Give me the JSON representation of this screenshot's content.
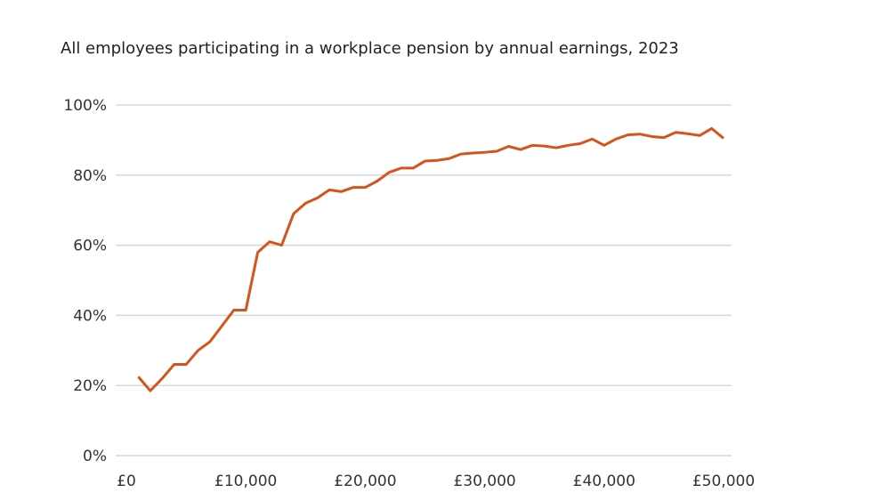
{
  "chart_data": {
    "type": "line",
    "title": "All employees participating in a workplace pension by annual earnings, 2023",
    "x": [
      1000,
      2000,
      3000,
      4000,
      5000,
      6000,
      7000,
      8000,
      9000,
      10000,
      11000,
      12000,
      13000,
      14000,
      15000,
      16000,
      17000,
      18000,
      19000,
      20000,
      21000,
      22000,
      23000,
      24000,
      25000,
      26000,
      27000,
      28000,
      29000,
      30000,
      31000,
      32000,
      33000,
      34000,
      35000,
      36000,
      37000,
      38000,
      39000,
      40000,
      41000,
      42000,
      43000,
      44000,
      45000,
      46000,
      47000,
      48000,
      49000,
      50000
    ],
    "series": [
      {
        "name": "All employees",
        "color": "#d4541c",
        "values": [
          22.5,
          18.5,
          22,
          26,
          26,
          30,
          32.5,
          37,
          41.5,
          41.5,
          58,
          61,
          60,
          69,
          72,
          73.5,
          75.8,
          75.3,
          76.5,
          76.5,
          78.3,
          80.8,
          82,
          82,
          84,
          84.2,
          84.7,
          86,
          86.3,
          86.5,
          86.8,
          88.2,
          87.3,
          88.5,
          88.3,
          87.8,
          88.5,
          89,
          90.3,
          88.5,
          90.3,
          91.5,
          91.7,
          91,
          90.7,
          92.2,
          91.8,
          91.3,
          93.3,
          90.5
        ]
      }
    ],
    "xlim": [
      0,
      50000
    ],
    "xticks": [
      {
        "value": 0,
        "label": "£0"
      },
      {
        "value": 10000,
        "label": "£10,000"
      },
      {
        "value": 20000,
        "label": "£20,000"
      },
      {
        "value": 30000,
        "label": "£30,000"
      },
      {
        "value": 40000,
        "label": "£40,000"
      },
      {
        "value": 50000,
        "label": "£50,000"
      }
    ],
    "ylim": [
      0,
      100
    ],
    "yticks": [
      {
        "value": 0,
        "label": "0%"
      },
      {
        "value": 20,
        "label": "20%"
      },
      {
        "value": 40,
        "label": "40%"
      },
      {
        "value": 60,
        "label": "60%"
      },
      {
        "value": 80,
        "label": "80%"
      },
      {
        "value": 100,
        "label": "100%"
      }
    ],
    "grid": true
  }
}
